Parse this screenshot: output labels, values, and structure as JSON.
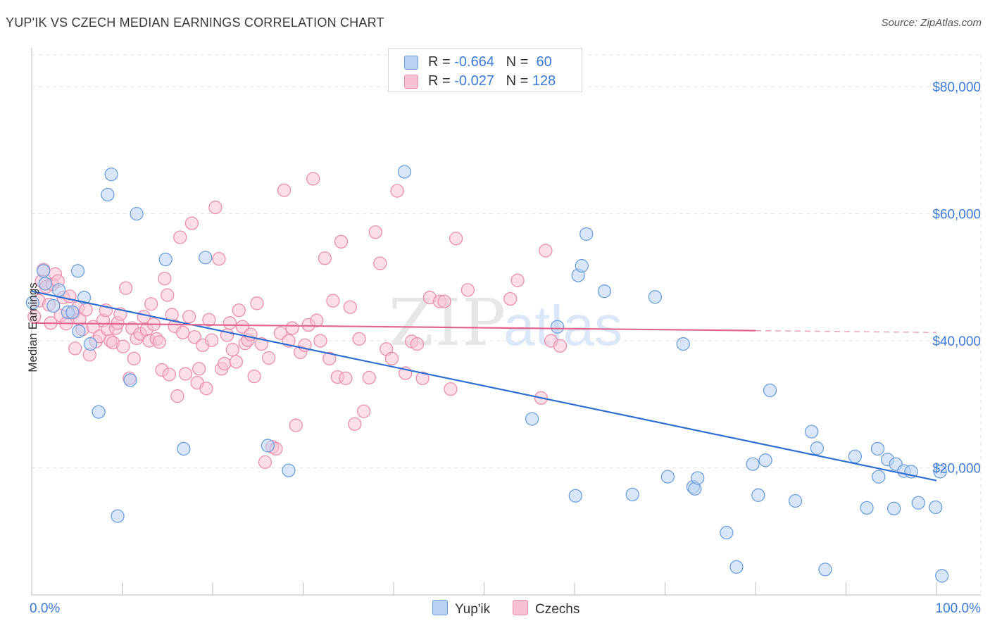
{
  "header": {
    "title": "YUP'IK VS CZECH MEDIAN EARNINGS CORRELATION CHART",
    "source": "Source: ZipAtlas.com"
  },
  "legend": {
    "yupik": {
      "r_label": "R =",
      "r_value": "-0.664",
      "n_label": "N =",
      "n_value": "60"
    },
    "czech": {
      "r_label": "R =",
      "r_value": "-0.027",
      "n_label": "N =",
      "n_value": "128"
    }
  },
  "colors": {
    "yupik_fill": "#b8d1f3",
    "yupik_stroke": "#6f9fdc",
    "yupik_line": "#2f6fd1",
    "czech_fill": "#f7c3d3",
    "czech_stroke": "#e98fae",
    "czech_line": "#e0668f",
    "axis_label_blue": "#3b7ad8",
    "grid": "#e3e3e3"
  },
  "chart_data": {
    "type": "scatter",
    "ylabel": "Median Earnings",
    "xlim": [
      0,
      100
    ],
    "ylim": [
      0,
      85000
    ],
    "x_tick_labels": [
      "0.0%",
      "100.0%"
    ],
    "y_ticks": [
      20000,
      40000,
      60000,
      80000
    ],
    "y_tick_labels": [
      "$20,000",
      "$40,000",
      "$60,000",
      "$80,000"
    ],
    "watermark": "ZIPatlas",
    "legend_position": "bottom",
    "series": [
      {
        "name": "Yup'ik",
        "trend": {
          "x0": 0,
          "y0": 47800,
          "x1": 100,
          "y1": 18000,
          "dashed_from": null
        },
        "points": [
          [
            0.1,
            46000
          ],
          [
            1.3,
            51000
          ],
          [
            1.5,
            49000
          ],
          [
            2.4,
            45500
          ],
          [
            3.0,
            48000
          ],
          [
            4.0,
            44500
          ],
          [
            4.5,
            44500
          ],
          [
            5.1,
            51000
          ],
          [
            5.2,
            41500
          ],
          [
            5.8,
            46800
          ],
          [
            6.5,
            39500
          ],
          [
            7.4,
            28800
          ],
          [
            8.4,
            63000
          ],
          [
            8.8,
            66200
          ],
          [
            9.5,
            12400
          ],
          [
            10.9,
            33800
          ],
          [
            11.6,
            60000
          ],
          [
            14.8,
            52800
          ],
          [
            16.8,
            23000
          ],
          [
            19.2,
            53100
          ],
          [
            26.1,
            23500
          ],
          [
            28.4,
            19600
          ],
          [
            41.2,
            66600
          ],
          [
            55.3,
            27700
          ],
          [
            58.1,
            42200
          ],
          [
            60.1,
            15600
          ],
          [
            60.4,
            50300
          ],
          [
            60.8,
            51800
          ],
          [
            61.3,
            56800
          ],
          [
            63.3,
            47800
          ],
          [
            66.4,
            15800
          ],
          [
            68.9,
            46900
          ],
          [
            70.3,
            18600
          ],
          [
            72.0,
            39500
          ],
          [
            73.1,
            17000
          ],
          [
            73.3,
            16700
          ],
          [
            73.6,
            18400
          ],
          [
            76.8,
            9800
          ],
          [
            77.9,
            4400
          ],
          [
            79.7,
            20600
          ],
          [
            80.3,
            15700
          ],
          [
            81.1,
            21200
          ],
          [
            81.6,
            32200
          ],
          [
            84.4,
            14800
          ],
          [
            86.2,
            25700
          ],
          [
            86.8,
            23100
          ],
          [
            87.7,
            4000
          ],
          [
            91.0,
            21800
          ],
          [
            92.3,
            13700
          ],
          [
            93.5,
            23000
          ],
          [
            93.6,
            18600
          ],
          [
            94.6,
            21300
          ],
          [
            95.3,
            13600
          ],
          [
            95.5,
            20600
          ],
          [
            96.4,
            19500
          ],
          [
            97.2,
            19400
          ],
          [
            98.0,
            14500
          ],
          [
            99.9,
            13800
          ],
          [
            100.4,
            19400
          ],
          [
            100.6,
            3000
          ]
        ]
      },
      {
        "name": "Czechs",
        "trend": {
          "x0": 0,
          "y0": 42800,
          "x1": 100,
          "y1": 41300,
          "dashed_from": 80
        },
        "points": [
          [
            0.3,
            43800
          ],
          [
            0.8,
            46300
          ],
          [
            1.1,
            49400
          ],
          [
            1.3,
            51200
          ],
          [
            1.6,
            48500
          ],
          [
            1.9,
            45700
          ],
          [
            2.1,
            42800
          ],
          [
            2.3,
            48900
          ],
          [
            2.6,
            50500
          ],
          [
            2.9,
            49400
          ],
          [
            3.2,
            44000
          ],
          [
            3.5,
            46800
          ],
          [
            3.8,
            42700
          ],
          [
            4.2,
            47000
          ],
          [
            4.6,
            44400
          ],
          [
            4.8,
            38800
          ],
          [
            5.1,
            45200
          ],
          [
            5.3,
            43400
          ],
          [
            5.6,
            41800
          ],
          [
            6.0,
            44900
          ],
          [
            6.4,
            37800
          ],
          [
            6.8,
            42200
          ],
          [
            7.1,
            39900
          ],
          [
            7.5,
            40700
          ],
          [
            7.9,
            43200
          ],
          [
            8.2,
            44800
          ],
          [
            8.4,
            41800
          ],
          [
            8.7,
            40000
          ],
          [
            9.0,
            39700
          ],
          [
            9.3,
            42000
          ],
          [
            9.5,
            42800
          ],
          [
            9.8,
            44200
          ],
          [
            10.1,
            39100
          ],
          [
            10.4,
            48300
          ],
          [
            10.8,
            34100
          ],
          [
            11.1,
            42000
          ],
          [
            11.3,
            37200
          ],
          [
            11.6,
            40400
          ],
          [
            12.0,
            41100
          ],
          [
            12.4,
            43800
          ],
          [
            12.7,
            41800
          ],
          [
            13.0,
            40000
          ],
          [
            13.2,
            45800
          ],
          [
            13.5,
            42600
          ],
          [
            13.8,
            40300
          ],
          [
            14.1,
            39800
          ],
          [
            14.4,
            35400
          ],
          [
            14.7,
            49800
          ],
          [
            15.0,
            47200
          ],
          [
            15.2,
            34700
          ],
          [
            15.5,
            44100
          ],
          [
            15.8,
            42300
          ],
          [
            16.1,
            31300
          ],
          [
            16.4,
            56300
          ],
          [
            16.7,
            41300
          ],
          [
            17.0,
            34800
          ],
          [
            17.4,
            43800
          ],
          [
            17.7,
            58500
          ],
          [
            18.0,
            40600
          ],
          [
            18.3,
            33400
          ],
          [
            18.5,
            35600
          ],
          [
            18.9,
            39300
          ],
          [
            19.3,
            32500
          ],
          [
            19.6,
            43300
          ],
          [
            19.9,
            40100
          ],
          [
            20.3,
            61000
          ],
          [
            20.7,
            52900
          ],
          [
            21.0,
            35600
          ],
          [
            21.3,
            36400
          ],
          [
            21.6,
            40900
          ],
          [
            21.9,
            42800
          ],
          [
            22.2,
            38600
          ],
          [
            22.6,
            36700
          ],
          [
            22.9,
            44800
          ],
          [
            23.3,
            42200
          ],
          [
            23.6,
            39600
          ],
          [
            23.9,
            40100
          ],
          [
            24.2,
            41000
          ],
          [
            24.6,
            34400
          ],
          [
            24.9,
            45900
          ],
          [
            25.4,
            39500
          ],
          [
            25.8,
            20900
          ],
          [
            26.2,
            37300
          ],
          [
            26.6,
            23300
          ],
          [
            27.0,
            23000
          ],
          [
            27.5,
            41200
          ],
          [
            27.9,
            63700
          ],
          [
            28.4,
            40000
          ],
          [
            28.8,
            42000
          ],
          [
            29.2,
            26700
          ],
          [
            29.7,
            38200
          ],
          [
            30.2,
            39300
          ],
          [
            30.6,
            42500
          ],
          [
            31.1,
            65500
          ],
          [
            31.5,
            43200
          ],
          [
            31.9,
            40000
          ],
          [
            32.4,
            53000
          ],
          [
            32.9,
            37200
          ],
          [
            33.3,
            46300
          ],
          [
            33.8,
            34300
          ],
          [
            34.2,
            55600
          ],
          [
            34.7,
            34100
          ],
          [
            35.2,
            45300
          ],
          [
            35.7,
            26900
          ],
          [
            36.2,
            40300
          ],
          [
            36.7,
            28900
          ],
          [
            37.3,
            34200
          ],
          [
            38.0,
            57100
          ],
          [
            38.5,
            52200
          ],
          [
            39.2,
            38700
          ],
          [
            39.8,
            37200
          ],
          [
            40.4,
            63600
          ],
          [
            41.3,
            34900
          ],
          [
            42.0,
            39900
          ],
          [
            42.6,
            39500
          ],
          [
            43.2,
            34100
          ],
          [
            44.0,
            46800
          ],
          [
            45.1,
            46200
          ],
          [
            45.6,
            46200
          ],
          [
            46.3,
            32400
          ],
          [
            46.9,
            56100
          ],
          [
            48.2,
            48000
          ],
          [
            52.9,
            46600
          ],
          [
            53.7,
            49500
          ],
          [
            56.3,
            31000
          ],
          [
            56.8,
            54200
          ],
          [
            57.4,
            40000
          ],
          [
            58.4,
            39200
          ]
        ]
      }
    ]
  }
}
